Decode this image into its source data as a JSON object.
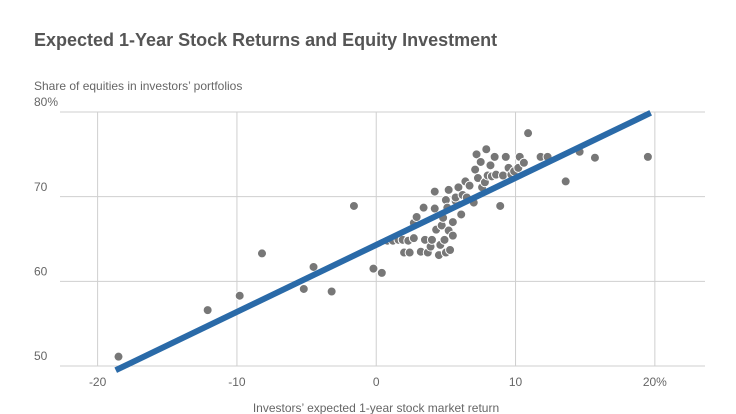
{
  "chart_data": {
    "type": "scatter",
    "title": "Expected 1-Year Stock Returns and Equity Investment",
    "y_label": "Share of equities in investors’ portfolios",
    "x_label": "Investors’ expected 1-year stock market return",
    "xlim": [
      -22.7,
      23.6
    ],
    "ylim": [
      50,
      80
    ],
    "xticks": [
      -20,
      -10,
      0,
      10,
      {
        "value": 20,
        "label": "20%"
      }
    ],
    "yticks": [
      {
        "value": 80,
        "label": "80%"
      },
      70,
      60,
      50
    ],
    "grid": true,
    "color": "#777777",
    "line_color": "#2a6aa8",
    "x": [
      -18.5,
      -12.1,
      -9.8,
      -8.2,
      -5.2,
      -4.5,
      -3.2,
      -1.6,
      -0.2,
      0.4,
      0.8,
      1.2,
      1.6,
      1.9,
      2.0,
      2.4,
      2.3,
      2.7,
      2.7,
      2.9,
      3.2,
      3.4,
      3.5,
      3.7,
      3.9,
      4.0,
      4.2,
      4.2,
      4.3,
      4.5,
      4.6,
      4.7,
      4.8,
      4.9,
      5.0,
      5.0,
      5.1,
      5.2,
      5.2,
      5.3,
      5.5,
      5.5,
      5.7,
      5.7,
      5.9,
      6.1,
      6.2,
      6.4,
      6.5,
      6.7,
      7.0,
      7.1,
      7.2,
      7.3,
      7.5,
      7.6,
      7.8,
      7.9,
      8.0,
      8.2,
      8.3,
      8.5,
      8.6,
      8.9,
      9.1,
      9.3,
      9.5,
      9.7,
      9.9,
      10.2,
      10.3,
      10.6,
      10.9,
      11.8,
      12.3,
      13.6,
      14.6,
      15.7,
      19.5
    ],
    "y": [
      51.1,
      56.6,
      58.3,
      63.3,
      59.1,
      61.7,
      58.8,
      68.9,
      61.5,
      61.0,
      64.8,
      64.8,
      64.9,
      64.9,
      63.4,
      63.4,
      64.8,
      65.1,
      66.9,
      67.6,
      63.5,
      68.7,
      64.9,
      63.4,
      64.1,
      64.9,
      68.6,
      70.6,
      66.1,
      63.1,
      64.3,
      66.6,
      67.5,
      64.9,
      69.6,
      63.4,
      68.7,
      66.0,
      70.8,
      63.7,
      67.0,
      65.4,
      69.5,
      69.9,
      71.1,
      67.9,
      70.2,
      71.8,
      69.9,
      71.3,
      69.3,
      73.2,
      75.0,
      72.2,
      74.1,
      71.1,
      71.7,
      75.6,
      72.5,
      73.7,
      72.4,
      74.7,
      72.6,
      68.9,
      72.5,
      74.7,
      73.4,
      72.6,
      73.0,
      73.4,
      74.7,
      74.0,
      77.5,
      74.7,
      74.7,
      71.8,
      75.3,
      74.6,
      74.7
    ],
    "fit_line": {
      "x": [
        -18.7,
        19.7
      ],
      "y": [
        49.5,
        79.9
      ]
    }
  }
}
